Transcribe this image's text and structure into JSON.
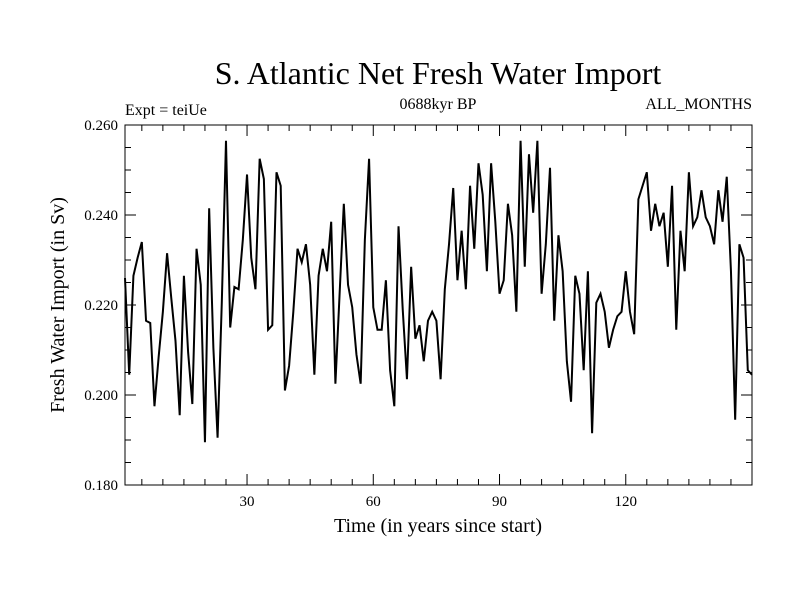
{
  "chart_data": {
    "type": "line",
    "title": "S. Atlantic Net Fresh Water Import",
    "subtitle_left": "Expt = teiUe",
    "subtitle_center": "0688kyr BP",
    "subtitle_right": "ALL_MONTHS",
    "xlabel": "Time (in years since start)",
    "ylabel": "Fresh Water Import (in Sv)",
    "xlim": [
      1,
      150
    ],
    "ylim": [
      0.18,
      0.26
    ],
    "xticks_major": [
      30,
      60,
      90,
      120
    ],
    "xtick_labels": [
      "30",
      "60",
      "90",
      "120"
    ],
    "yticks_major": [
      0.18,
      0.2,
      0.22,
      0.24,
      0.26
    ],
    "ytick_labels": [
      "0.180",
      "0.200",
      "0.220",
      "0.240",
      "0.260"
    ],
    "series": [
      {
        "name": "Fresh Water Import",
        "color": "#000000",
        "x": [
          1,
          2,
          3,
          4,
          5,
          6,
          7,
          8,
          9,
          10,
          11,
          12,
          13,
          14,
          15,
          16,
          17,
          18,
          19,
          20,
          21,
          22,
          23,
          24,
          25,
          26,
          27,
          28,
          29,
          30,
          31,
          32,
          33,
          34,
          35,
          36,
          37,
          38,
          39,
          40,
          41,
          42,
          43,
          44,
          45,
          46,
          47,
          48,
          49,
          50,
          51,
          52,
          53,
          54,
          55,
          56,
          57,
          58,
          59,
          60,
          61,
          62,
          63,
          64,
          65,
          66,
          67,
          68,
          69,
          70,
          71,
          72,
          73,
          74,
          75,
          76,
          77,
          78,
          79,
          80,
          81,
          82,
          83,
          84,
          85,
          86,
          87,
          88,
          89,
          90,
          91,
          92,
          93,
          94,
          95,
          96,
          97,
          98,
          99,
          100,
          101,
          102,
          103,
          104,
          105,
          106,
          107,
          108,
          109,
          110,
          111,
          112,
          113,
          114,
          115,
          116,
          117,
          118,
          119,
          120,
          121,
          122,
          123,
          124,
          125,
          126,
          127,
          128,
          129,
          130,
          131,
          132,
          133,
          134,
          135,
          136,
          137,
          138,
          139,
          140,
          141,
          142,
          143,
          144,
          145,
          146,
          147,
          148,
          149,
          150
        ],
        "values": [
          0.226,
          0.2045,
          0.2265,
          0.2305,
          0.234,
          0.2165,
          0.216,
          0.1975,
          0.2085,
          0.2185,
          0.2315,
          0.2215,
          0.212,
          0.1955,
          0.2265,
          0.2095,
          0.198,
          0.2325,
          0.2245,
          0.1895,
          0.2415,
          0.2105,
          0.1905,
          0.2205,
          0.2565,
          0.215,
          0.224,
          0.2235,
          0.2345,
          0.249,
          0.2305,
          0.2235,
          0.2525,
          0.248,
          0.2145,
          0.2155,
          0.2495,
          0.2465,
          0.201,
          0.2065,
          0.2185,
          0.2325,
          0.2295,
          0.2335,
          0.2245,
          0.2045,
          0.2265,
          0.2325,
          0.2275,
          0.2385,
          0.2025,
          0.2225,
          0.2425,
          0.2245,
          0.2195,
          0.209,
          0.2025,
          0.2345,
          0.2525,
          0.2195,
          0.2145,
          0.2145,
          0.2255,
          0.2055,
          0.1975,
          0.2375,
          0.219,
          0.2035,
          0.2285,
          0.2125,
          0.2155,
          0.2075,
          0.2165,
          0.2185,
          0.2165,
          0.2035,
          0.2235,
          0.2335,
          0.246,
          0.2255,
          0.2365,
          0.2235,
          0.2465,
          0.2325,
          0.2515,
          0.2445,
          0.2275,
          0.2515,
          0.2385,
          0.2225,
          0.2255,
          0.2425,
          0.2355,
          0.2185,
          0.2565,
          0.2285,
          0.2535,
          0.2405,
          0.2565,
          0.2225,
          0.2335,
          0.2505,
          0.2165,
          0.2355,
          0.2275,
          0.2075,
          0.1985,
          0.2265,
          0.2225,
          0.2055,
          0.2275,
          0.1915,
          0.2205,
          0.2225,
          0.2185,
          0.2105,
          0.2145,
          0.2175,
          0.2185,
          0.2275,
          0.2185,
          0.2135,
          0.2435,
          0.2465,
          0.2495,
          0.2365,
          0.2425,
          0.2375,
          0.2405,
          0.2285,
          0.2465,
          0.2145,
          0.2365,
          0.2275,
          0.2495,
          0.2375,
          0.2395,
          0.2455,
          0.2395,
          0.2375,
          0.2335,
          0.2455,
          0.2385,
          0.2485,
          0.2275,
          0.1945,
          0.2335,
          0.2305,
          0.2055,
          0.2045
        ]
      }
    ]
  }
}
